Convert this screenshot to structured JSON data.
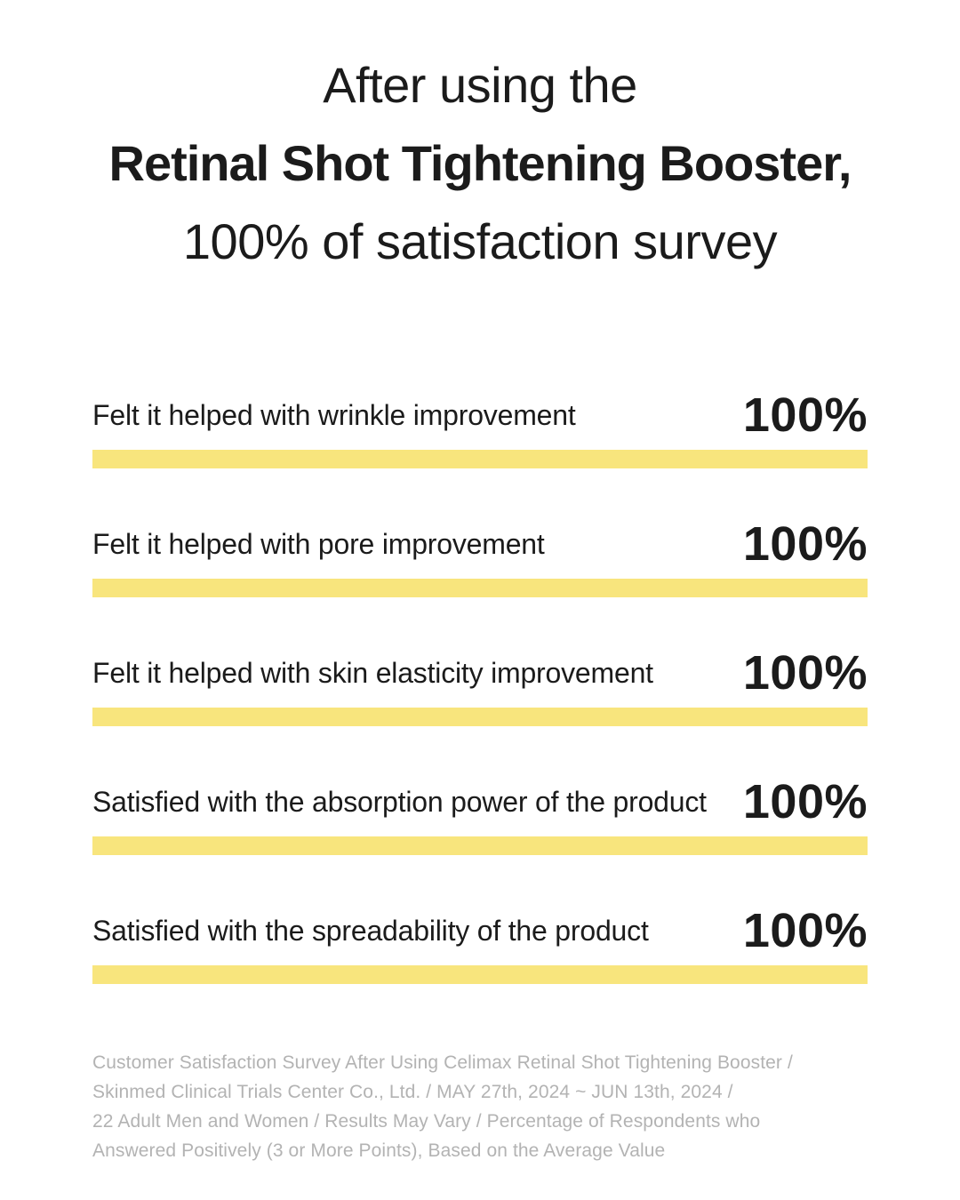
{
  "title": {
    "lines": [
      "After using the",
      "Retinal Shot Tightening Booster,",
      "100% of satisfaction survey"
    ]
  },
  "survey": {
    "items": [
      {
        "label": "Felt it helped with wrinkle improvement",
        "value": "100%",
        "percent": 100
      },
      {
        "label": "Felt it helped with pore improvement",
        "value": "100%",
        "percent": 100
      },
      {
        "label": "Felt it helped with skin elasticity improvement",
        "value": "100%",
        "percent": 100
      },
      {
        "label": "Satisfied with the absorption power of the product",
        "value": "100%",
        "percent": 100
      },
      {
        "label": "Satisfied with the spreadability of the product",
        "value": "100%",
        "percent": 100
      }
    ]
  },
  "footer": {
    "lines": [
      "Customer Satisfaction Survey After Using Celimax Retinal Shot Tightening Booster /",
      "Skinmed Clinical Trials Center Co., Ltd. / MAY 27th, 2024 ~ JUN 13th, 2024 /",
      "22 Adult Men and Women / Results May Vary / Percentage of Respondents who",
      "Answered Positively (3 or More Points), Based on the Average Value"
    ]
  },
  "colors": {
    "bar_yellow": "#F8E57D",
    "text_dark": "#1b1b1b",
    "footer_gray": "#b3b3b3"
  },
  "chart_data": {
    "type": "bar",
    "orientation": "horizontal",
    "title": "After using the Retinal Shot Tightening Booster, 100% of satisfaction survey",
    "categories": [
      "Felt it helped with wrinkle improvement",
      "Felt it helped with pore improvement",
      "Felt it helped with skin elasticity improvement",
      "Satisfied with the absorption power of the product",
      "Satisfied with the spreadability of the product"
    ],
    "values": [
      100,
      100,
      100,
      100,
      100
    ],
    "value_labels": [
      "100%",
      "100%",
      "100%",
      "100%",
      "100%"
    ],
    "xlabel": "",
    "ylabel": "",
    "xlim": [
      0,
      100
    ],
    "grid": false,
    "legend": false,
    "bar_color": "#F8E57D",
    "annotation": "Customer Satisfaction Survey After Using Celimax Retinal Shot Tightening Booster / Skinmed Clinical Trials Center Co., Ltd. / MAY 27th, 2024 ~ JUN 13th, 2024 / 22 Adult Men and Women / Results May Vary / Percentage of Respondents who Answered Positively (3 or More Points), Based on the Average Value"
  }
}
